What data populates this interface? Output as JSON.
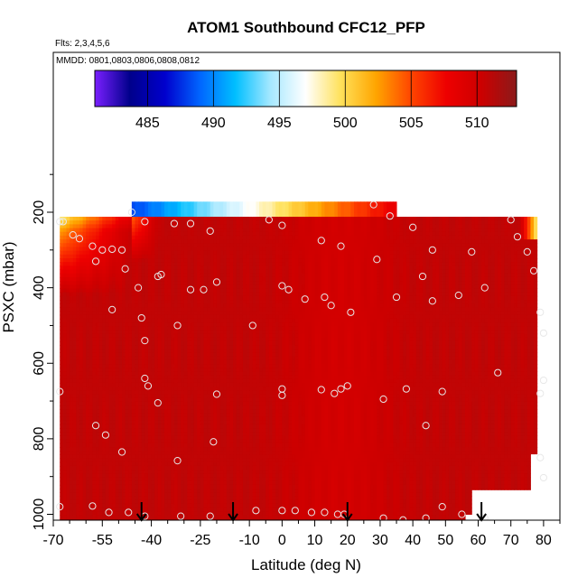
{
  "chart_data": {
    "type": "heatmap",
    "title": "ATOM1 Southbound CFC12_PFP",
    "subtitle_flights": "Flts: 2,3,4,5,6",
    "subtitle_dates": "MMDD: 0801,0803,0806,0808,0812",
    "xlabel": "Latitude (deg N)",
    "ylabel": "PSXC (mbar)",
    "xlim": [
      -70,
      85
    ],
    "ylim": [
      1030,
      100
    ],
    "x_ticks": [
      -70,
      -55,
      -40,
      -25,
      -10,
      0,
      10,
      20,
      30,
      40,
      50,
      60,
      70,
      80
    ],
    "y_ticks": [
      200,
      400,
      600,
      800,
      1000
    ],
    "colorbar": {
      "range": [
        481,
        513
      ],
      "ticks": [
        485,
        490,
        495,
        500,
        505,
        510
      ],
      "colors": [
        "#7a1fff",
        "#00008b",
        "#0000cd",
        "#0066ff",
        "#00bfff",
        "#a6e8ff",
        "#ffffff",
        "#ffe15a",
        "#ffa500",
        "#ff4500",
        "#ee0000",
        "#cc0000",
        "#8b1a1a"
      ]
    },
    "samples": [
      [
        -68,
        225
      ],
      [
        -67,
        225
      ],
      [
        -64,
        260
      ],
      [
        -62,
        270
      ],
      [
        -58,
        290
      ],
      [
        -57,
        330
      ],
      [
        -55,
        300
      ],
      [
        -52,
        298
      ],
      [
        -49,
        300
      ],
      [
        -46,
        200
      ],
      [
        -42,
        225
      ],
      [
        -44,
        400
      ],
      [
        -43,
        480
      ],
      [
        -42,
        540
      ],
      [
        -52,
        458
      ],
      [
        -48,
        350
      ],
      [
        -38,
        370
      ],
      [
        -37,
        365
      ],
      [
        -33,
        230
      ],
      [
        -28,
        230
      ],
      [
        -32,
        500
      ],
      [
        -28,
        405
      ],
      [
        -24,
        405
      ],
      [
        -22,
        250
      ],
      [
        -20,
        385
      ],
      [
        -9,
        500
      ],
      [
        -4,
        220
      ],
      [
        0,
        235
      ],
      [
        0,
        395
      ],
      [
        2,
        405
      ],
      [
        7,
        430
      ],
      [
        12,
        275
      ],
      [
        13,
        425
      ],
      [
        15,
        447
      ],
      [
        18,
        290
      ],
      [
        21,
        465
      ],
      [
        29,
        325
      ],
      [
        28,
        180
      ],
      [
        33,
        210
      ],
      [
        35,
        425
      ],
      [
        40,
        240
      ],
      [
        43,
        370
      ],
      [
        46,
        300
      ],
      [
        46,
        435
      ],
      [
        54,
        420
      ],
      [
        58,
        305
      ],
      [
        62,
        400
      ],
      [
        70,
        220
      ],
      [
        72,
        265
      ],
      [
        75,
        305
      ],
      [
        77,
        355
      ],
      [
        79,
        465
      ],
      [
        80,
        520
      ],
      [
        -68,
        675
      ],
      [
        -42,
        640
      ],
      [
        -41,
        660
      ],
      [
        -38,
        705
      ],
      [
        -20,
        682
      ],
      [
        0,
        668
      ],
      [
        0,
        685
      ],
      [
        12,
        670
      ],
      [
        16,
        680
      ],
      [
        18,
        668
      ],
      [
        20,
        660
      ],
      [
        31,
        695
      ],
      [
        38,
        668
      ],
      [
        44,
        765
      ],
      [
        49,
        675
      ],
      [
        66,
        625
      ],
      [
        80,
        645
      ],
      [
        79,
        680
      ],
      [
        -57,
        765
      ],
      [
        -54,
        790
      ],
      [
        -49,
        835
      ],
      [
        -32,
        858
      ],
      [
        -21,
        808
      ],
      [
        79,
        850
      ],
      [
        80,
        903
      ],
      [
        -68,
        980
      ],
      [
        -58,
        978
      ],
      [
        -53,
        995
      ],
      [
        -47,
        995
      ],
      [
        -42,
        1005
      ],
      [
        -31,
        1005
      ],
      [
        -22,
        1005
      ],
      [
        -8,
        990
      ],
      [
        0,
        990
      ],
      [
        4,
        990
      ],
      [
        9,
        995
      ],
      [
        13,
        995
      ],
      [
        17,
        1000
      ],
      [
        19,
        1000
      ],
      [
        31,
        1010
      ],
      [
        37,
        1015
      ],
      [
        44,
        1010
      ],
      [
        49,
        980
      ],
      [
        55,
        1000
      ],
      [
        62,
        1010
      ]
    ],
    "arrows_lat": [
      -43,
      -15,
      20,
      61
    ]
  }
}
